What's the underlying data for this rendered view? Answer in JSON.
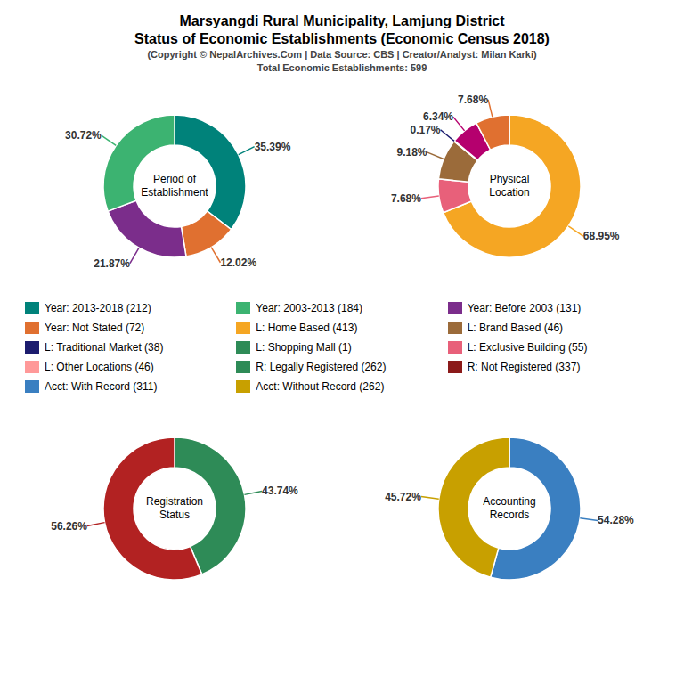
{
  "title": [
    "Marsyangdi Rural Municipality, Lamjung District",
    "Status of Economic Establishments (Economic Census 2018)"
  ],
  "subtitle": [
    "(Copyright © NepalArchives.Com | Data Source: CBS | Creator/Analyst: Milan Karki)",
    "Total Economic Establishments: 599"
  ],
  "legend_items": [
    {
      "label": "Year: 2013-2018 (212)",
      "color": "#00827A"
    },
    {
      "label": "Year: 2003-2013 (184)",
      "color": "#3CB371"
    },
    {
      "label": "Year: Before 2003 (131)",
      "color": "#7B2D8B"
    },
    {
      "label": "Year: Not Stated (72)",
      "color": "#E07030"
    },
    {
      "label": "L: Home Based (413)",
      "color": "#F5A623"
    },
    {
      "label": "L: Brand Based (46)",
      "color": "#9B6B3A"
    },
    {
      "label": "L: Traditional Market (38)",
      "color": "#1C1C6E"
    },
    {
      "label": "L: Shopping Mall (1)",
      "color": "#2E8B57"
    },
    {
      "label": "L: Exclusive Building (55)",
      "color": "#E8607A"
    },
    {
      "label": "L: Other Locations (46)",
      "color": "#FF9999"
    },
    {
      "label": "R: Legally Registered (262)",
      "color": "#2E8B57"
    },
    {
      "label": "R: Not Registered (337)",
      "color": "#8B1A1A"
    },
    {
      "label": "Acct: With Record (311)",
      "color": "#3A7FC1"
    },
    {
      "label": "Acct: Without Record (262)",
      "color": "#C8A000"
    }
  ],
  "chart_data": [
    {
      "type": "pie",
      "title": "Period of\nEstablishment",
      "values": [
        35.39,
        12.02,
        21.87,
        30.72
      ],
      "value_labels": [
        "35.39%",
        "12.02%",
        "21.87%",
        "30.72%"
      ],
      "colors": [
        "#00827A",
        "#E07030",
        "#7B2D8B",
        "#3CB371"
      ],
      "data_labels": true
    },
    {
      "type": "pie",
      "title": "Physical\nLocation",
      "values": [
        68.95,
        7.68,
        9.18,
        0.17,
        6.34,
        7.68
      ],
      "value_labels": [
        "68.95%",
        "7.68%",
        "9.18%",
        "0.17%",
        "6.34%",
        "7.68%"
      ],
      "colors": [
        "#F5A623",
        "#E8607A",
        "#9B6B3A",
        "#1C1C6E",
        "#B5006E",
        "#E07030"
      ],
      "data_labels": true
    },
    {
      "type": "pie",
      "title": "Registration\nStatus",
      "values": [
        43.74,
        56.26
      ],
      "value_labels": [
        "43.74%",
        "56.26%"
      ],
      "colors": [
        "#2E8B57",
        "#B22222"
      ],
      "data_labels": true
    },
    {
      "type": "pie",
      "title": "Accounting\nRecords",
      "values": [
        54.28,
        45.72
      ],
      "value_labels": [
        "54.28%",
        "45.72%"
      ],
      "colors": [
        "#3A7FC1",
        "#C8A000"
      ],
      "data_labels": true
    }
  ]
}
